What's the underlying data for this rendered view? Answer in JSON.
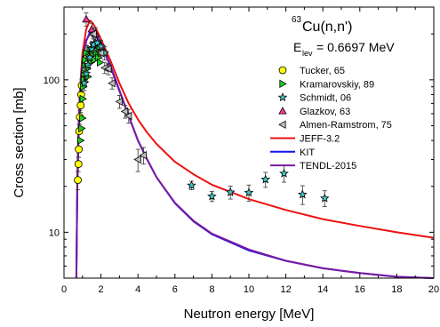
{
  "chart_data": {
    "type": "scatter",
    "xlabel": "Neutron energy [MeV]",
    "ylabel": "Cross section [mb]",
    "xlim": [
      0,
      20
    ],
    "ylim": [
      5,
      300
    ],
    "yscale": "log",
    "x_ticks": [
      "0",
      "2",
      "4",
      "6",
      "8",
      "10",
      "12",
      "14",
      "16",
      "18",
      "20"
    ],
    "y_ticks": [
      {
        "value": 10,
        "label": "10"
      },
      {
        "value": 100,
        "label": "100"
      }
    ],
    "annotation": {
      "mass": "63",
      "reaction": "Cu(n,n')",
      "e_sym": "E",
      "e_sub": "lev",
      "e_val": "= 0.6697 MeV"
    },
    "legend_position": "right",
    "series": [
      {
        "name": "Tucker, 65",
        "kind": "points",
        "marker": "circle",
        "color": "#ffff00",
        "points": [
          {
            "x": 0.75,
            "y": 22,
            "err": 3
          },
          {
            "x": 0.78,
            "y": 28,
            "err": 3
          },
          {
            "x": 0.8,
            "y": 35,
            "err": 4
          },
          {
            "x": 0.82,
            "y": 46,
            "err": 5
          },
          {
            "x": 0.86,
            "y": 57,
            "err": 6
          },
          {
            "x": 0.9,
            "y": 68,
            "err": 7
          },
          {
            "x": 0.93,
            "y": 80,
            "err": 8
          },
          {
            "x": 0.96,
            "y": 92,
            "err": 9
          }
        ]
      },
      {
        "name": "Kramarovskiy, 89",
        "kind": "points",
        "marker": "triangle-right",
        "color": "#22cc22",
        "points": [
          {
            "x": 0.9,
            "y": 40
          },
          {
            "x": 0.95,
            "y": 48
          },
          {
            "x": 1.0,
            "y": 56
          },
          {
            "x": 1.02,
            "y": 75
          },
          {
            "x": 1.05,
            "y": 90
          },
          {
            "x": 1.08,
            "y": 100
          },
          {
            "x": 1.1,
            "y": 110
          },
          {
            "x": 1.13,
            "y": 125
          },
          {
            "x": 1.15,
            "y": 135
          },
          {
            "x": 1.2,
            "y": 150
          },
          {
            "x": 1.25,
            "y": 118
          },
          {
            "x": 1.3,
            "y": 105
          },
          {
            "x": 1.35,
            "y": 140
          },
          {
            "x": 1.4,
            "y": 160
          },
          {
            "x": 1.45,
            "y": 130
          },
          {
            "x": 1.5,
            "y": 155
          },
          {
            "x": 1.55,
            "y": 145
          },
          {
            "x": 1.6,
            "y": 170
          },
          {
            "x": 1.65,
            "y": 135
          },
          {
            "x": 1.7,
            "y": 165
          },
          {
            "x": 1.75,
            "y": 150
          },
          {
            "x": 1.8,
            "y": 175
          },
          {
            "x": 1.85,
            "y": 140
          },
          {
            "x": 1.9,
            "y": 160
          },
          {
            "x": 1.95,
            "y": 130
          },
          {
            "x": 2.0,
            "y": 150
          }
        ]
      },
      {
        "name": "Schmidt, 06",
        "kind": "points",
        "marker": "star",
        "color": "#40c8c8",
        "points": [
          {
            "x": 1.1,
            "y": 95,
            "err": 10
          },
          {
            "x": 1.2,
            "y": 110,
            "err": 12
          },
          {
            "x": 1.3,
            "y": 125,
            "err": 13
          },
          {
            "x": 1.4,
            "y": 140,
            "err": 15
          },
          {
            "x": 1.5,
            "y": 160,
            "err": 16
          },
          {
            "x": 1.6,
            "y": 170,
            "err": 18
          },
          {
            "x": 1.8,
            "y": 175,
            "err": 18
          },
          {
            "x": 2.0,
            "y": 165,
            "err": 17
          },
          {
            "x": 2.2,
            "y": 150,
            "err": 15
          },
          {
            "x": 6.9,
            "y": 20.3,
            "err": 1.3
          },
          {
            "x": 8.0,
            "y": 17.2,
            "err": 1.3
          },
          {
            "x": 9.0,
            "y": 18.3,
            "err": 1.8
          },
          {
            "x": 10.0,
            "y": 18.2,
            "err": 2.2
          },
          {
            "x": 10.9,
            "y": 22.2,
            "err": 2.5
          },
          {
            "x": 11.9,
            "y": 24.3,
            "err": 3
          },
          {
            "x": 12.9,
            "y": 17.7,
            "err": 2.5
          },
          {
            "x": 14.1,
            "y": 16.7,
            "err": 2
          }
        ]
      },
      {
        "name": "Glazkov, 63",
        "kind": "points",
        "marker": "triangle-up",
        "color": "#ff3399",
        "points": [
          {
            "x": 1.2,
            "y": 250,
            "err": 25
          },
          {
            "x": 1.5,
            "y": 215,
            "err": 20
          },
          {
            "x": 1.7,
            "y": 200,
            "err": 20
          }
        ]
      },
      {
        "name": "Almen-Ramstrom, 75",
        "kind": "points",
        "marker": "triangle-left",
        "color": "#c0c0c0",
        "points": [
          {
            "x": 1.6,
            "y": 200,
            "err": 15
          },
          {
            "x": 2.0,
            "y": 150,
            "err": 12
          },
          {
            "x": 2.2,
            "y": 120,
            "err": 10
          },
          {
            "x": 2.4,
            "y": 118,
            "err": 10
          },
          {
            "x": 2.6,
            "y": 95,
            "err": 8
          },
          {
            "x": 3.0,
            "y": 72,
            "err": 7
          },
          {
            "x": 3.3,
            "y": 62,
            "err": 6
          },
          {
            "x": 3.5,
            "y": 58,
            "err": 6
          },
          {
            "x": 4.0,
            "y": 30,
            "err": 5
          },
          {
            "x": 4.3,
            "y": 32,
            "err": 4
          }
        ]
      },
      {
        "name": "JEFF-3.2",
        "kind": "line",
        "color": "#ee1111",
        "points": [
          {
            "x": 0.67,
            "y": 5
          },
          {
            "x": 0.72,
            "y": 22
          },
          {
            "x": 0.8,
            "y": 55
          },
          {
            "x": 0.9,
            "y": 100
          },
          {
            "x": 1.0,
            "y": 150
          },
          {
            "x": 1.2,
            "y": 215
          },
          {
            "x": 1.4,
            "y": 245
          },
          {
            "x": 1.5,
            "y": 240
          },
          {
            "x": 1.7,
            "y": 220
          },
          {
            "x": 2.0,
            "y": 185
          },
          {
            "x": 2.5,
            "y": 135
          },
          {
            "x": 3.0,
            "y": 95
          },
          {
            "x": 3.5,
            "y": 70
          },
          {
            "x": 4.0,
            "y": 55
          },
          {
            "x": 4.5,
            "y": 45
          },
          {
            "x": 5.0,
            "y": 38
          },
          {
            "x": 6.0,
            "y": 29
          },
          {
            "x": 7.0,
            "y": 24
          },
          {
            "x": 8.0,
            "y": 20.5
          },
          {
            "x": 10.0,
            "y": 16.5
          },
          {
            "x": 12.0,
            "y": 14
          },
          {
            "x": 14.0,
            "y": 12.2
          },
          {
            "x": 16.0,
            "y": 11
          },
          {
            "x": 18.0,
            "y": 10
          },
          {
            "x": 20.0,
            "y": 9.2
          }
        ]
      },
      {
        "name": "KIT",
        "kind": "line",
        "color": "#1111ee",
        "points": [
          {
            "x": 0.67,
            "y": 5
          },
          {
            "x": 0.72,
            "y": 20
          },
          {
            "x": 0.8,
            "y": 50
          },
          {
            "x": 0.9,
            "y": 90
          },
          {
            "x": 1.0,
            "y": 130
          },
          {
            "x": 1.2,
            "y": 180
          },
          {
            "x": 1.4,
            "y": 205
          },
          {
            "x": 1.5,
            "y": 208
          },
          {
            "x": 1.7,
            "y": 200
          },
          {
            "x": 2.0,
            "y": 175
          },
          {
            "x": 2.5,
            "y": 125
          },
          {
            "x": 3.0,
            "y": 85
          },
          {
            "x": 3.5,
            "y": 58
          },
          {
            "x": 4.0,
            "y": 40
          },
          {
            "x": 4.5,
            "y": 30
          },
          {
            "x": 5.0,
            "y": 23
          },
          {
            "x": 6.0,
            "y": 15.5
          },
          {
            "x": 7.0,
            "y": 11.8
          },
          {
            "x": 8.0,
            "y": 9.7
          },
          {
            "x": 10.0,
            "y": 7.6
          },
          {
            "x": 12.0,
            "y": 6.5
          },
          {
            "x": 14.0,
            "y": 5.8
          },
          {
            "x": 16.0,
            "y": 5.4
          },
          {
            "x": 18.0,
            "y": 5.1
          },
          {
            "x": 20.0,
            "y": 4.9
          }
        ]
      },
      {
        "name": "TENDL-2015",
        "kind": "line",
        "color": "#7a1aa0",
        "points": [
          {
            "x": 0.67,
            "y": 5
          },
          {
            "x": 0.72,
            "y": 21
          },
          {
            "x": 0.8,
            "y": 52
          },
          {
            "x": 0.9,
            "y": 92
          },
          {
            "x": 1.0,
            "y": 132
          },
          {
            "x": 1.2,
            "y": 182
          },
          {
            "x": 1.4,
            "y": 200
          },
          {
            "x": 1.5,
            "y": 202
          },
          {
            "x": 1.7,
            "y": 195
          },
          {
            "x": 2.0,
            "y": 172
          },
          {
            "x": 2.5,
            "y": 123
          },
          {
            "x": 3.0,
            "y": 84
          },
          {
            "x": 3.5,
            "y": 58
          },
          {
            "x": 4.0,
            "y": 40
          },
          {
            "x": 4.5,
            "y": 30
          },
          {
            "x": 5.0,
            "y": 23
          },
          {
            "x": 6.0,
            "y": 15.6
          },
          {
            "x": 7.0,
            "y": 11.9
          },
          {
            "x": 8.0,
            "y": 9.8
          },
          {
            "x": 10.0,
            "y": 7.7
          },
          {
            "x": 12.0,
            "y": 6.5
          },
          {
            "x": 14.0,
            "y": 5.8
          },
          {
            "x": 16.0,
            "y": 5.4
          },
          {
            "x": 18.0,
            "y": 5.1
          },
          {
            "x": 20.0,
            "y": 4.9
          }
        ]
      }
    ]
  }
}
